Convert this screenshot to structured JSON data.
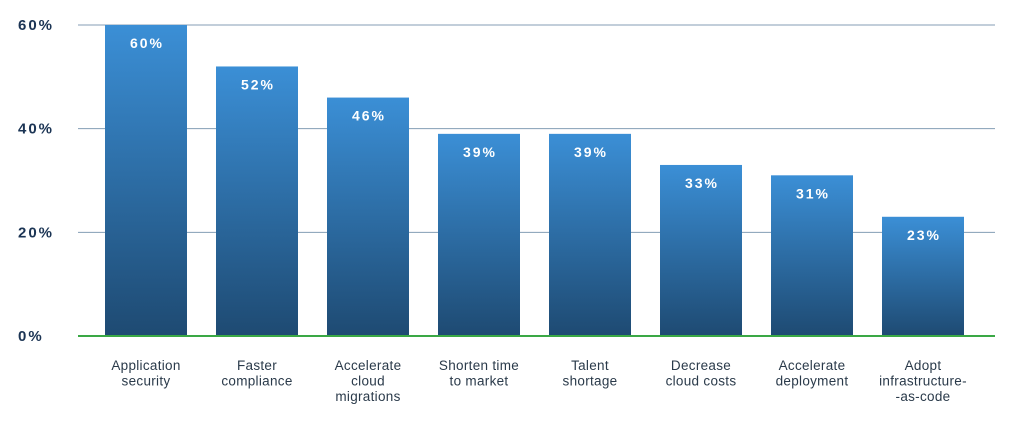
{
  "chart_data": {
    "type": "bar",
    "title": "",
    "xlabel": "",
    "ylabel": "",
    "ylim": [
      0,
      60
    ],
    "yticks": [
      0,
      20,
      40,
      60
    ],
    "ytick_labels": [
      "0%",
      "20%",
      "40%",
      "60%"
    ],
    "grid": true,
    "categories": [
      [
        "Application",
        "security"
      ],
      [
        "Faster",
        "compliance"
      ],
      [
        "Accelerate",
        "cloud",
        "migrations"
      ],
      [
        "Shorten time",
        "to market"
      ],
      [
        "Talent",
        "shortage"
      ],
      [
        "Decrease",
        "cloud costs"
      ],
      [
        "Accelerate",
        "deployment"
      ],
      [
        "Adopt",
        "infrastructure-",
        "-as-code"
      ]
    ],
    "values": [
      60,
      52,
      46,
      39,
      39,
      33,
      31,
      23
    ],
    "data_labels": [
      "60%",
      "52%",
      "46%",
      "39%",
      "39%",
      "33%",
      "31%",
      "23%"
    ]
  },
  "colors": {
    "bar_top": "#3b8fd6",
    "bar_bottom": "#1e4a72",
    "grid": "#1f4e79",
    "baseline": "#3aa845",
    "axis_text": "#1b3454",
    "category_text": "#2a3a4a",
    "data_label": "#ffffff"
  }
}
